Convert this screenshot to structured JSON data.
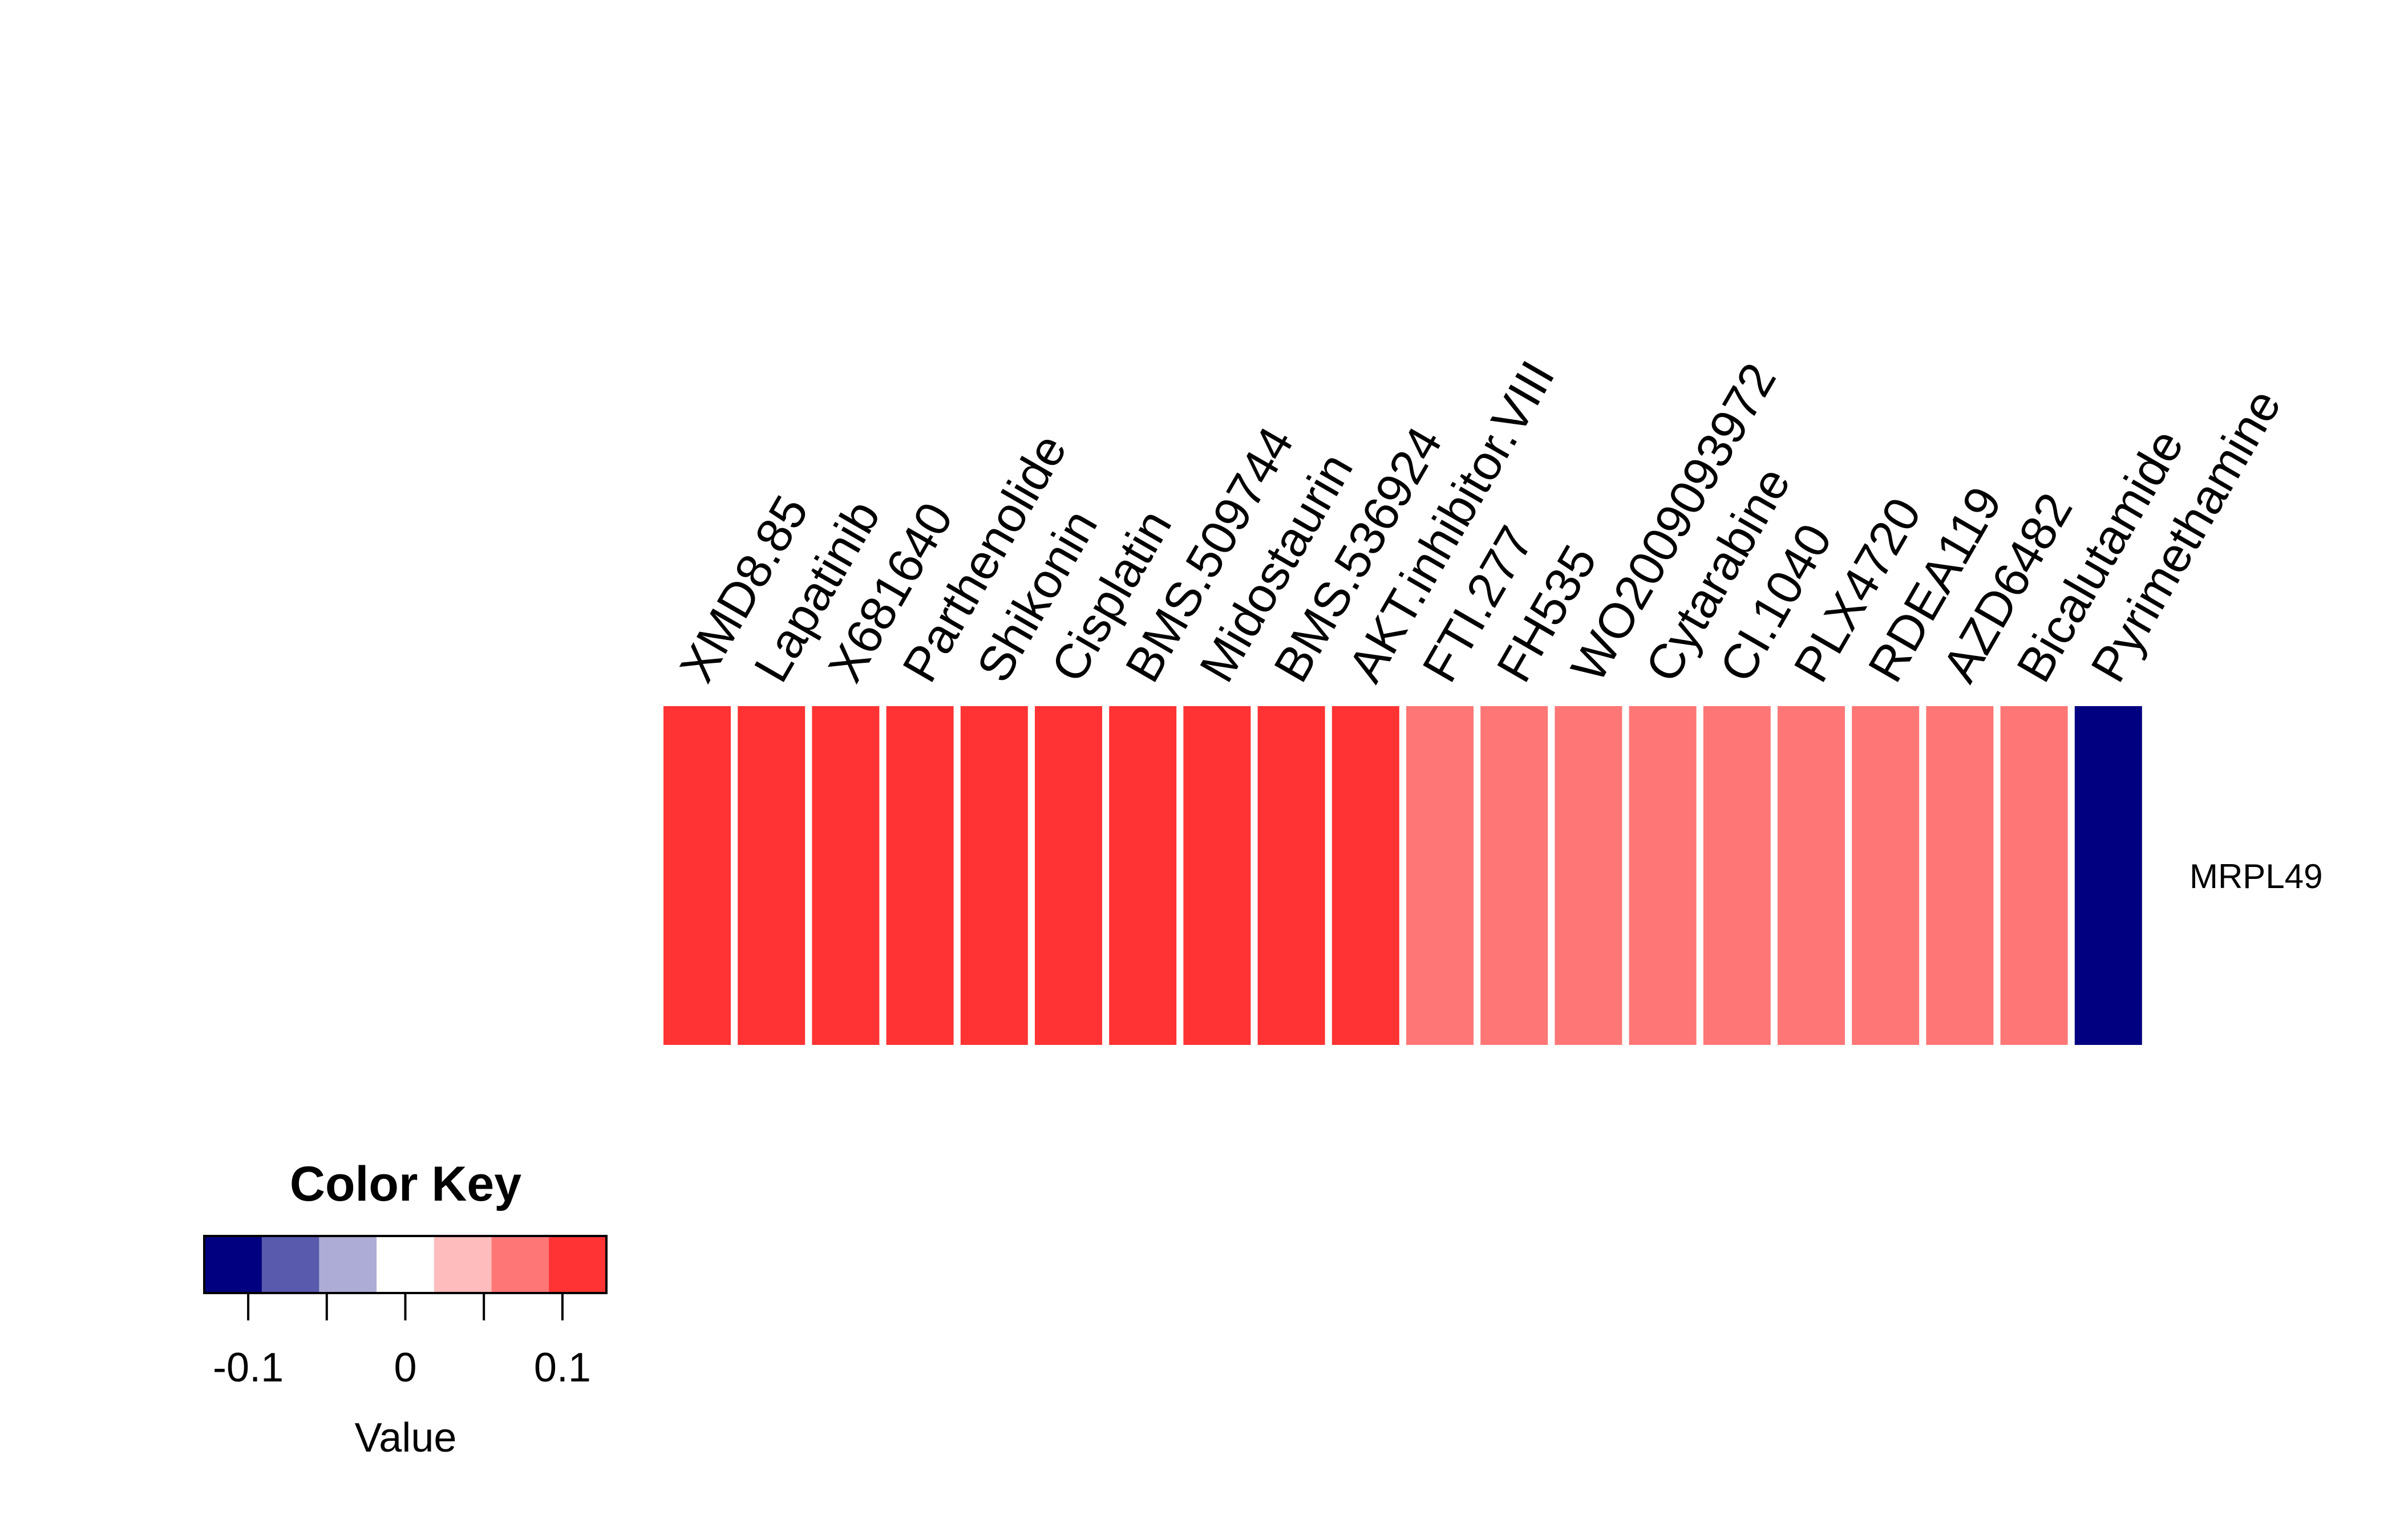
{
  "chart_data": {
    "type": "heatmap",
    "rows": [
      "MRPL49"
    ],
    "columns": [
      "XMD8.85",
      "Lapatinib",
      "X681640",
      "Parthenolide",
      "Shikonin",
      "Cisplatin",
      "BMS.509744",
      "Midostaurin",
      "BMS.536924",
      "AKT.inhibitor.VIII",
      "FTI.277",
      "FH535",
      "WO2009093972",
      "Cytarabine",
      "CI.1040",
      "PLX4720",
      "RDEA119",
      "AZD6482",
      "Bicalutamide",
      "Pyrimethamine"
    ],
    "values": [
      [
        0.11,
        0.11,
        0.11,
        0.11,
        0.11,
        0.11,
        0.11,
        0.11,
        0.11,
        0.11,
        0.07,
        0.07,
        0.07,
        0.07,
        0.07,
        0.07,
        0.07,
        0.07,
        0.07,
        -0.11
      ]
    ],
    "color_scale": {
      "breaks": [
        -0.128,
        -0.0914,
        -0.0549,
        -0.0183,
        0.0183,
        0.0549,
        0.0914,
        0.128
      ],
      "colors": [
        "#000080",
        "#5959AD",
        "#ACACD6",
        "#FFFFFF",
        "#FFBCBC",
        "#FF7676",
        "#FF3333"
      ]
    },
    "color_key": {
      "title": "Color Key",
      "xlabel": "Value",
      "ticks": [
        -0.1,
        -0.05,
        0,
        0.05,
        0.1
      ],
      "tick_labels": [
        "-0.1",
        "0",
        "0.1"
      ],
      "labeled_ticks": [
        -0.1,
        0,
        0.1
      ]
    }
  }
}
